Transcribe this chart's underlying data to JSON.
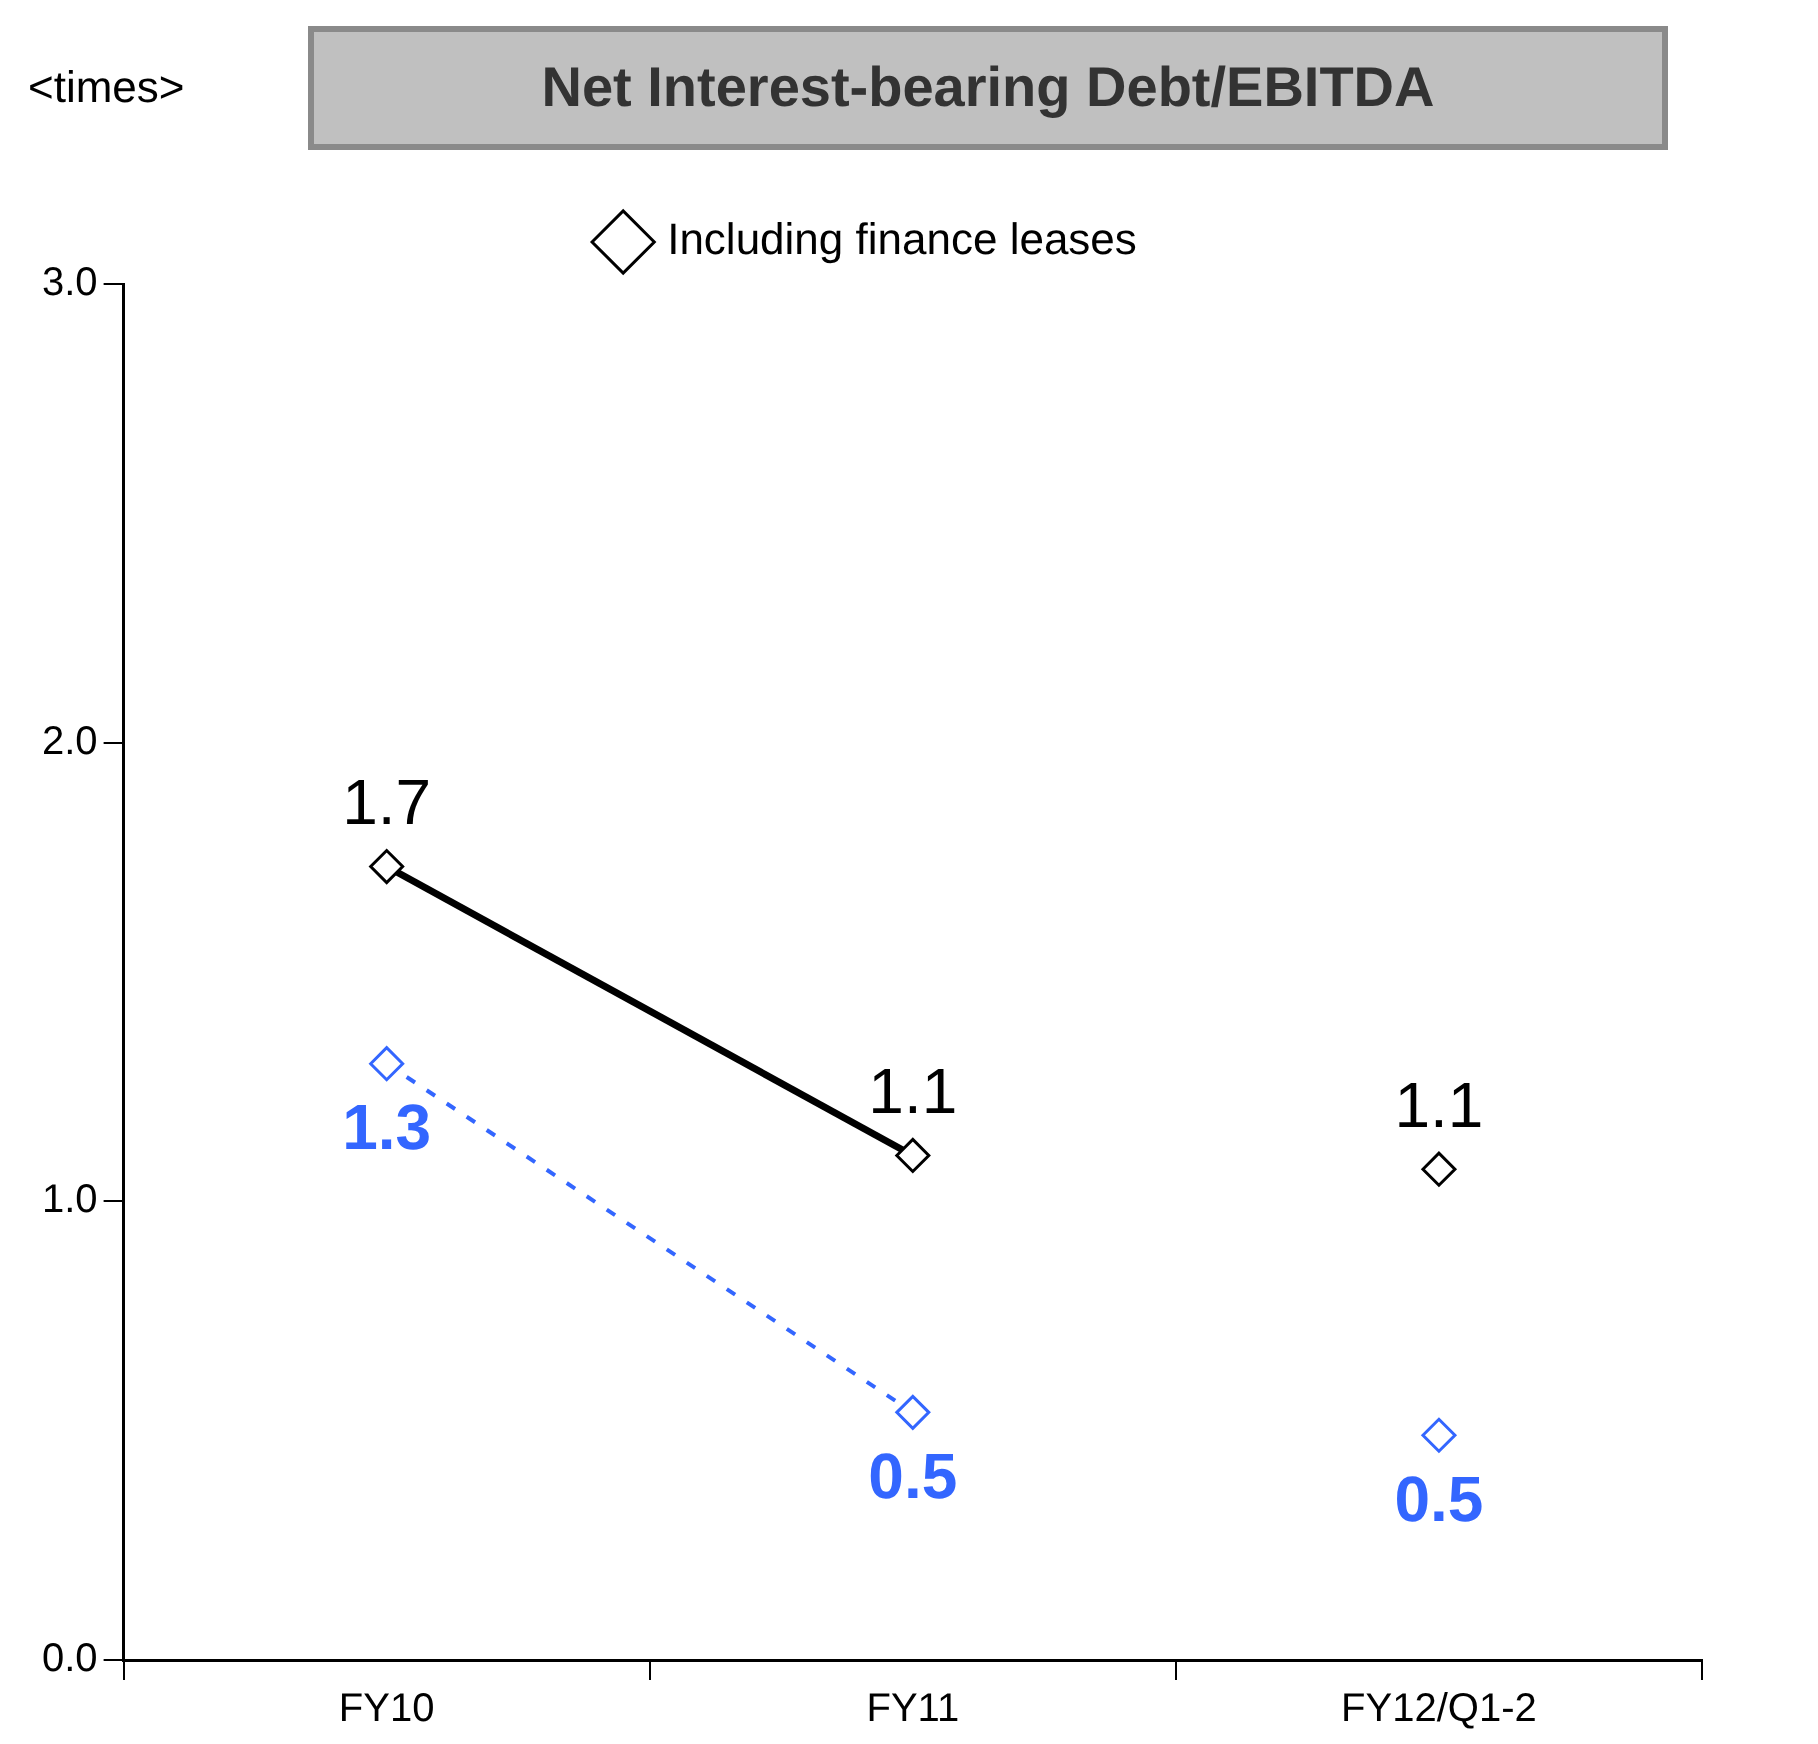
{
  "chart_data": {
    "type": "line",
    "title": "Net Interest-bearing Debt/EBITDA",
    "ylabel": "<times>",
    "categories": [
      "FY10",
      "FY11",
      "FY12/Q1-2"
    ],
    "series": [
      {
        "name": "Including finance leases",
        "color": "#000000",
        "type": "line",
        "line_style": "solid",
        "values": [
          1.73,
          1.1,
          null
        ],
        "value_labels": [
          "1.7",
          "1.1",
          null
        ]
      },
      {
        "color": "#000000",
        "type": "scatter",
        "values": [
          null,
          null,
          1.07
        ],
        "value_labels": [
          null,
          null,
          "1.1"
        ]
      },
      {
        "color": "#3366ff",
        "type": "line",
        "line_style": "dashed",
        "values": [
          1.3,
          0.54,
          null
        ],
        "value_labels": [
          "1.3",
          "0.5",
          null
        ]
      },
      {
        "color": "#3366ff",
        "type": "scatter",
        "values": [
          null,
          null,
          0.49
        ],
        "value_labels": [
          null,
          null,
          "0.5"
        ]
      }
    ],
    "ylim": [
      0,
      3
    ],
    "yticks": [
      {
        "value": 0,
        "label": "0.0"
      },
      {
        "value": 1,
        "label": "1.0"
      },
      {
        "value": 2,
        "label": "2.0"
      },
      {
        "value": 3,
        "label": "3.0"
      }
    ],
    "grid": false,
    "legend": "top",
    "marker": "diamond"
  }
}
